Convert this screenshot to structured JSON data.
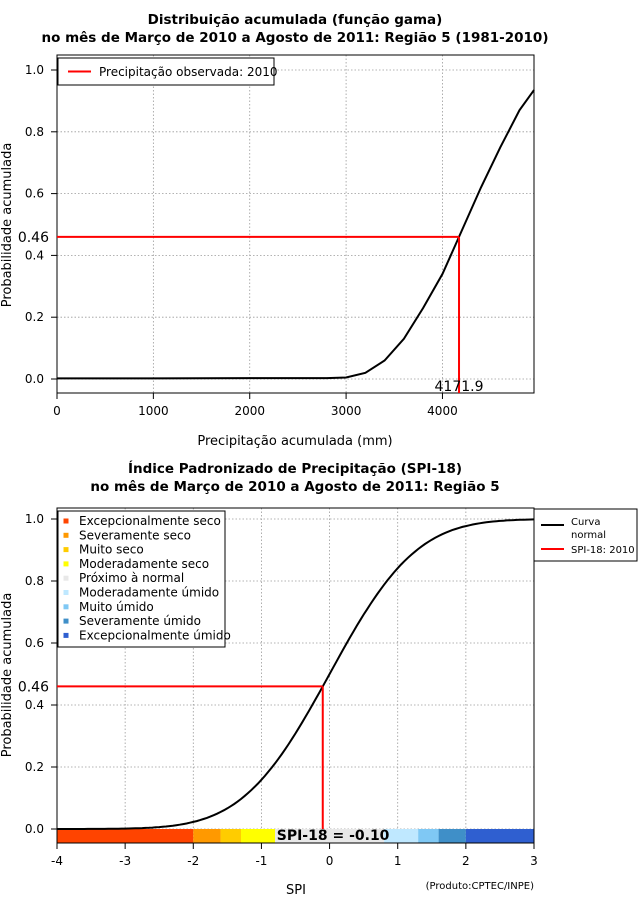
{
  "colors": {
    "curve": "#000000",
    "marker": "#ff0000",
    "grid": "#9a9a9a",
    "class_colors": [
      "#ff4400",
      "#ff9900",
      "#ffcc00",
      "#ffff00",
      "#e8e8e8",
      "#bfe8ff",
      "#7fc8f4",
      "#3f8fc8",
      "#2f5fd0"
    ]
  },
  "chart_data": [
    {
      "type": "line",
      "title_line1": "Distribuição acumulada (função gama)",
      "title_line2": "no mês de Março de 2010 a Agosto de 2011: Região 5 (1981-2010)",
      "xlabel": "Precipitação acumulada (mm)",
      "ylabel": "Probabilidade acumulada",
      "xlim": [
        0,
        4950
      ],
      "ylim": [
        0,
        1
      ],
      "xticks": [
        "0",
        "1000",
        "2000",
        "3000",
        "4000"
      ],
      "xtick_values": [
        0,
        1000,
        2000,
        3000,
        4000
      ],
      "yticks": [
        "0.0",
        "0.2",
        "0.4",
        "0.6",
        "0.8",
        "1.0"
      ],
      "ytick_values": [
        0,
        0.2,
        0.4,
        0.6,
        0.8,
        1.0
      ],
      "series": [
        {
          "name": "CDF gama",
          "x": [
            0,
            1000,
            2000,
            2800,
            3000,
            3200,
            3400,
            3600,
            3800,
            4000,
            4171.9,
            4400,
            4600,
            4800,
            4950
          ],
          "y": [
            0.002,
            0.002,
            0.003,
            0.003,
            0.005,
            0.02,
            0.06,
            0.13,
            0.23,
            0.34,
            0.46,
            0.62,
            0.75,
            0.87,
            0.935
          ]
        }
      ],
      "legend": {
        "position": "top-left",
        "label": "Precipitação observada: 2010"
      },
      "observed": {
        "x": 4171.9,
        "p": 0.46,
        "x_label": "4171.9",
        "p_label": "0.46"
      }
    },
    {
      "type": "line",
      "title_line1": "Índice Padronizado de Precipitação (SPI-18)",
      "title_line2": "no mês de Março de 2010 a Agosto de 2011: Região 5",
      "xlabel": "SPI",
      "ylabel": "Probabilidade acumulada",
      "xlim": [
        -4,
        3
      ],
      "ylim": [
        0,
        1
      ],
      "xticks": [
        "-4",
        "-3",
        "-2",
        "-1",
        "0",
        "1",
        "2",
        "3"
      ],
      "xtick_values": [
        -4,
        -3,
        -2,
        -1,
        0,
        1,
        2,
        3
      ],
      "yticks": [
        "0.0",
        "0.2",
        "0.4",
        "0.6",
        "0.8",
        "1.0"
      ],
      "ytick_values": [
        0,
        0.2,
        0.4,
        0.6,
        0.8,
        1.0
      ],
      "series": [
        {
          "name": "Curva normal",
          "x": [
            -4,
            3
          ],
          "y": [
            0,
            1
          ]
        }
      ],
      "spi": {
        "value": -0.1,
        "p": 0.46,
        "label": "SPI-18 = -0.10",
        "p_label": "0.46"
      },
      "classes": [
        {
          "label": "Excepcionalmente seco",
          "from": -4.0,
          "to": -2.0
        },
        {
          "label": "Severamente seco",
          "from": -2.0,
          "to": -1.6
        },
        {
          "label": "Muito seco",
          "from": -1.6,
          "to": -1.3
        },
        {
          "label": "Moderadamente seco",
          "from": -1.3,
          "to": -0.8
        },
        {
          "label": "Próximo à normal",
          "from": -0.8,
          "to": 0.8
        },
        {
          "label": "Moderadamente úmido",
          "from": 0.8,
          "to": 1.3
        },
        {
          "label": "Muito úmido",
          "from": 1.3,
          "to": 1.6
        },
        {
          "label": "Severamente úmido",
          "from": 1.6,
          "to": 2.0
        },
        {
          "label": "Excepcionalmente úmido",
          "from": 2.0,
          "to": 3.0
        }
      ],
      "legend_right": {
        "curve_line1": "Curva",
        "curve_line2": "normal",
        "spi": "SPI-18: 2010"
      },
      "credit": "(Produto:CPTEC/INPE)"
    }
  ]
}
